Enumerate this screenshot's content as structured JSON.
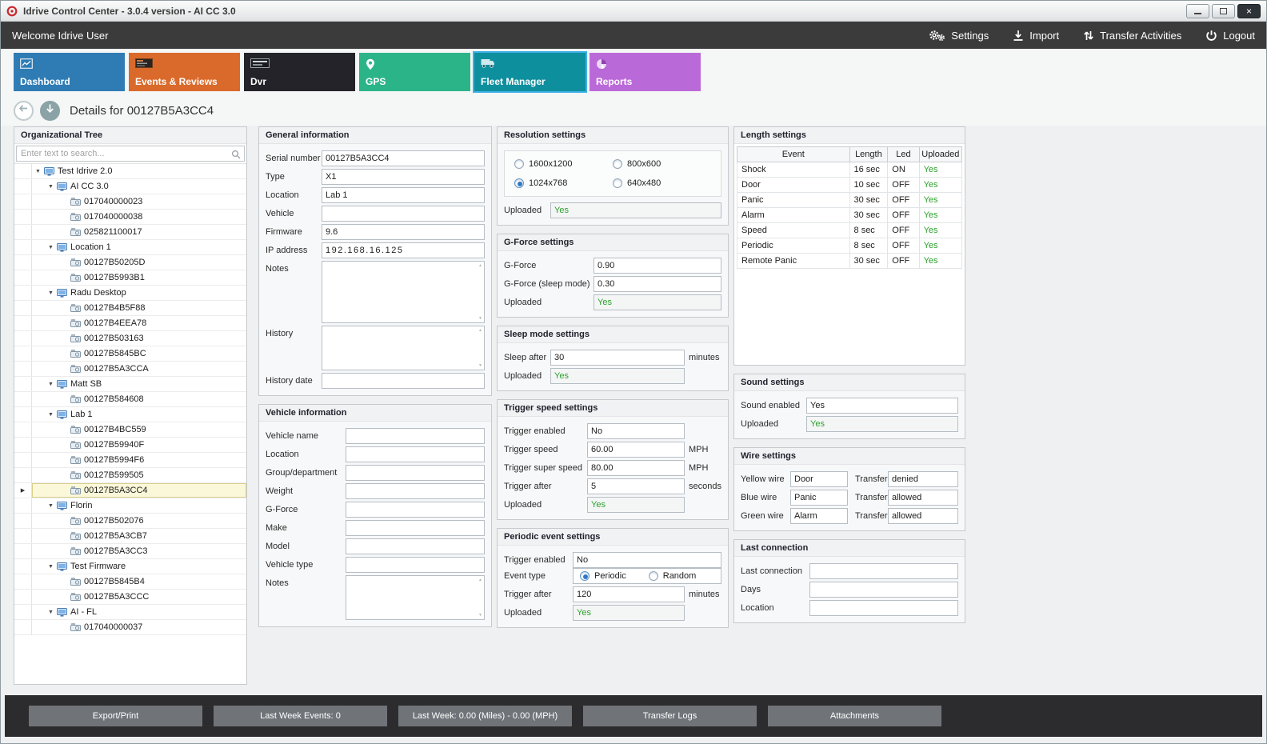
{
  "window": {
    "title": "Idrive Control Center - 3.0.4 version - AI CC 3.0"
  },
  "topbar": {
    "welcome": "Welcome Idrive User",
    "actions": {
      "settings": "Settings",
      "import": "Import",
      "transfer_activities": "Transfer Activities",
      "logout": "Logout"
    }
  },
  "nav": {
    "tabs": [
      {
        "label": "Dashboard",
        "color": "#2f7cb5",
        "selected": false,
        "icon": "line-chart-icon"
      },
      {
        "label": "Events & Reviews",
        "color": "#da6a2b",
        "selected": false,
        "icon": "events-badge-icon"
      },
      {
        "label": "Dvr",
        "color": "#232329",
        "selected": false,
        "icon": "dvr-badge-icon"
      },
      {
        "label": "GPS",
        "color": "#2cb489",
        "selected": false,
        "icon": "map-pin-icon"
      },
      {
        "label": "Fleet Manager",
        "color": "#0e8f9e",
        "selected": true,
        "icon": "fleet-truck-icon"
      },
      {
        "label": "Reports",
        "color": "#ba69d8",
        "selected": false,
        "icon": "pie-chart-icon"
      }
    ]
  },
  "details": {
    "title": "Details for 00127B5A3CC4"
  },
  "tree": {
    "title": "Organizational Tree",
    "search_placeholder": "Enter text to search...",
    "nodes": [
      {
        "label": "Test Idrive 2.0",
        "level": 0,
        "type": "group"
      },
      {
        "label": "AI CC 3.0",
        "level": 1,
        "type": "group"
      },
      {
        "label": "017040000023",
        "level": 2,
        "type": "device"
      },
      {
        "label": "017040000038",
        "level": 2,
        "type": "device"
      },
      {
        "label": "025821100017",
        "level": 2,
        "type": "device"
      },
      {
        "label": "Location 1",
        "level": 1,
        "type": "group"
      },
      {
        "label": "00127B50205D",
        "level": 2,
        "type": "device"
      },
      {
        "label": "00127B5993B1",
        "level": 2,
        "type": "device"
      },
      {
        "label": "Radu Desktop",
        "level": 1,
        "type": "group"
      },
      {
        "label": "00127B4B5F88",
        "level": 2,
        "type": "device"
      },
      {
        "label": "00127B4EEA78",
        "level": 2,
        "type": "device"
      },
      {
        "label": "00127B503163",
        "level": 2,
        "type": "device"
      },
      {
        "label": "00127B5845BC",
        "level": 2,
        "type": "device"
      },
      {
        "label": "00127B5A3CCA",
        "level": 2,
        "type": "device"
      },
      {
        "label": "Matt SB",
        "level": 1,
        "type": "group"
      },
      {
        "label": "00127B584608",
        "level": 2,
        "type": "device"
      },
      {
        "label": "Lab 1",
        "level": 1,
        "type": "group"
      },
      {
        "label": "00127B4BC559",
        "level": 2,
        "type": "device"
      },
      {
        "label": "00127B59940F",
        "level": 2,
        "type": "device"
      },
      {
        "label": "00127B5994F6",
        "level": 2,
        "type": "device"
      },
      {
        "label": "00127B599505",
        "level": 2,
        "type": "device"
      },
      {
        "label": "00127B5A3CC4",
        "level": 2,
        "type": "device",
        "selected": true
      },
      {
        "label": "Florin",
        "level": 1,
        "type": "group"
      },
      {
        "label": "00127B502076",
        "level": 2,
        "type": "device"
      },
      {
        "label": "00127B5A3CB7",
        "level": 2,
        "type": "device"
      },
      {
        "label": "00127B5A3CC3",
        "level": 2,
        "type": "device"
      },
      {
        "label": "Test Firmware",
        "level": 1,
        "type": "group"
      },
      {
        "label": "00127B5845B4",
        "level": 2,
        "type": "device"
      },
      {
        "label": "00127B5A3CCC",
        "level": 2,
        "type": "device"
      },
      {
        "label": "AI - FL",
        "level": 1,
        "type": "group"
      },
      {
        "label": "017040000037",
        "level": 2,
        "type": "device"
      }
    ]
  },
  "general_info": {
    "title": "General information",
    "fields": [
      {
        "label": "Serial number",
        "value": "00127B5A3CC4",
        "type": "text"
      },
      {
        "label": "Type",
        "value": "X1",
        "type": "text"
      },
      {
        "label": "Location",
        "value": "Lab 1",
        "type": "text"
      },
      {
        "label": "Vehicle",
        "value": "",
        "type": "text"
      },
      {
        "label": "Firmware",
        "value": "9.6",
        "type": "text"
      },
      {
        "label": "IP address",
        "value": "192.168.16.125",
        "type": "text"
      },
      {
        "label": "Notes",
        "value": "",
        "type": "textarea"
      },
      {
        "label": "History",
        "value": "",
        "type": "textarea"
      },
      {
        "label": "History date",
        "value": "",
        "type": "text"
      }
    ]
  },
  "vehicle_info": {
    "title": "Vehicle information",
    "fields": [
      {
        "label": "Vehicle name",
        "value": "",
        "type": "text"
      },
      {
        "label": "Location",
        "value": "",
        "type": "text"
      },
      {
        "label": "Group/department",
        "value": "",
        "type": "text"
      },
      {
        "label": "Weight",
        "value": "",
        "type": "text"
      },
      {
        "label": "G-Force",
        "value": "",
        "type": "text"
      },
      {
        "label": "Make",
        "value": "",
        "type": "text"
      },
      {
        "label": "Model",
        "value": "",
        "type": "text"
      },
      {
        "label": "Vehicle type",
        "value": "",
        "type": "text"
      },
      {
        "label": "Notes",
        "value": "",
        "type": "textarea"
      }
    ]
  },
  "resolution": {
    "title": "Resolution settings",
    "options": [
      {
        "label": "1600x1200",
        "selected": false
      },
      {
        "label": "800x600",
        "selected": false
      },
      {
        "label": "1024x768",
        "selected": true
      },
      {
        "label": "640x480",
        "selected": false
      }
    ],
    "uploaded_label": "Uploaded",
    "uploaded_value": "Yes"
  },
  "gforce": {
    "title": "G-Force settings",
    "fields": [
      {
        "label": "G-Force",
        "value": "0.90",
        "type": "text"
      },
      {
        "label": "G-Force (sleep mode)",
        "value": "0.30",
        "type": "text"
      },
      {
        "label": "Uploaded",
        "value": "Yes",
        "type": "yes"
      }
    ]
  },
  "sleep": {
    "title": "Sleep mode settings",
    "fields": [
      {
        "label": "Sleep after",
        "value": "30",
        "type": "text",
        "suffix": "minutes"
      },
      {
        "label": "Uploaded",
        "value": "Yes",
        "type": "yes",
        "suffix": ""
      }
    ]
  },
  "trigger_speed": {
    "title": "Trigger speed settings",
    "fields": [
      {
        "label": "Trigger enabled",
        "value": "No",
        "type": "text",
        "suffix": ""
      },
      {
        "label": "Trigger speed",
        "value": "60.00",
        "type": "text",
        "suffix": "MPH"
      },
      {
        "label": "Trigger super speed",
        "value": "80.00",
        "type": "text",
        "suffix": "MPH"
      },
      {
        "label": "Trigger after",
        "value": "5",
        "type": "text",
        "suffix": "seconds"
      },
      {
        "label": "Uploaded",
        "value": "Yes",
        "type": "yes",
        "suffix": ""
      }
    ]
  },
  "periodic": {
    "title": "Periodic event settings",
    "fields_top": [
      {
        "label": "Trigger enabled",
        "value": "No",
        "type": "text"
      }
    ],
    "event_type": {
      "label": "Event type",
      "options": [
        {
          "label": "Periodic",
          "selected": true
        },
        {
          "label": "Random",
          "selected": false
        }
      ]
    },
    "fields_bottom": [
      {
        "label": "Trigger after",
        "value": "120",
        "type": "text",
        "suffix": "minutes"
      },
      {
        "label": "Uploaded",
        "value": "Yes",
        "type": "yes",
        "suffix": ""
      }
    ]
  },
  "length_settings": {
    "title": "Length settings",
    "columns": [
      "Event",
      "Length",
      "Led",
      "Uploaded"
    ],
    "rows": [
      [
        "Shock",
        "16 sec",
        "ON",
        "Yes"
      ],
      [
        "Door",
        "10 sec",
        "OFF",
        "Yes"
      ],
      [
        "Panic",
        "30 sec",
        "OFF",
        "Yes"
      ],
      [
        "Alarm",
        "30 sec",
        "OFF",
        "Yes"
      ],
      [
        "Speed",
        "8 sec",
        "OFF",
        "Yes"
      ],
      [
        "Periodic",
        "8 sec",
        "OFF",
        "Yes"
      ],
      [
        "Remote Panic",
        "30 sec",
        "OFF",
        "Yes"
      ]
    ]
  },
  "sound": {
    "title": "Sound settings",
    "fields": [
      {
        "label": "Sound enabled",
        "value": "Yes",
        "type": "text"
      },
      {
        "label": "Uploaded",
        "value": "Yes",
        "type": "yes"
      }
    ]
  },
  "wire": {
    "title": "Wire settings",
    "rows": [
      {
        "wire_label": "Yellow wire",
        "wire_value": "Door",
        "transfer_label": "Transfer",
        "transfer_value": "denied"
      },
      {
        "wire_label": "Blue wire",
        "wire_value": "Panic",
        "transfer_label": "Transfer",
        "transfer_value": "allowed"
      },
      {
        "wire_label": "Green wire",
        "wire_value": "Alarm",
        "transfer_label": "Transfer",
        "transfer_value": "allowed"
      }
    ]
  },
  "last_connection": {
    "title": "Last connection",
    "fields": [
      {
        "label": "Last connection",
        "value": "",
        "type": "text"
      },
      {
        "label": "Days",
        "value": "",
        "type": "text"
      },
      {
        "label": "Location",
        "value": "",
        "type": "text"
      }
    ]
  },
  "bottombar": {
    "buttons": [
      "Export/Print",
      "Last Week Events: 0",
      "Last Week: 0.00 (Miles) - 0.00 (MPH)",
      "Transfer Logs",
      "Attachments"
    ]
  },
  "colors": {
    "uploaded_yes_green": "#2da12d",
    "selected_tab_outline": "#3fb0e6",
    "selected_tree_row_bg": "#fbf8da",
    "topbar_dark": "#3b3b3c"
  },
  "icons": {
    "app-logo-icon": "red-ring",
    "gears-icon": "two-gears",
    "import-icon": "arrow-down-to-line",
    "transfer-icon": "arrows-up-down",
    "power-icon": "power-symbol",
    "search-icon": "magnifier",
    "arrow-left-icon": "back-arrow-circle",
    "arrow-down-icon": "down-arrow-circle",
    "computer-icon": "monitor",
    "camera-icon": "device-camera",
    "expand-arrow-icon": "triangle-down",
    "current-row-arrow-icon": "triangle-right"
  }
}
